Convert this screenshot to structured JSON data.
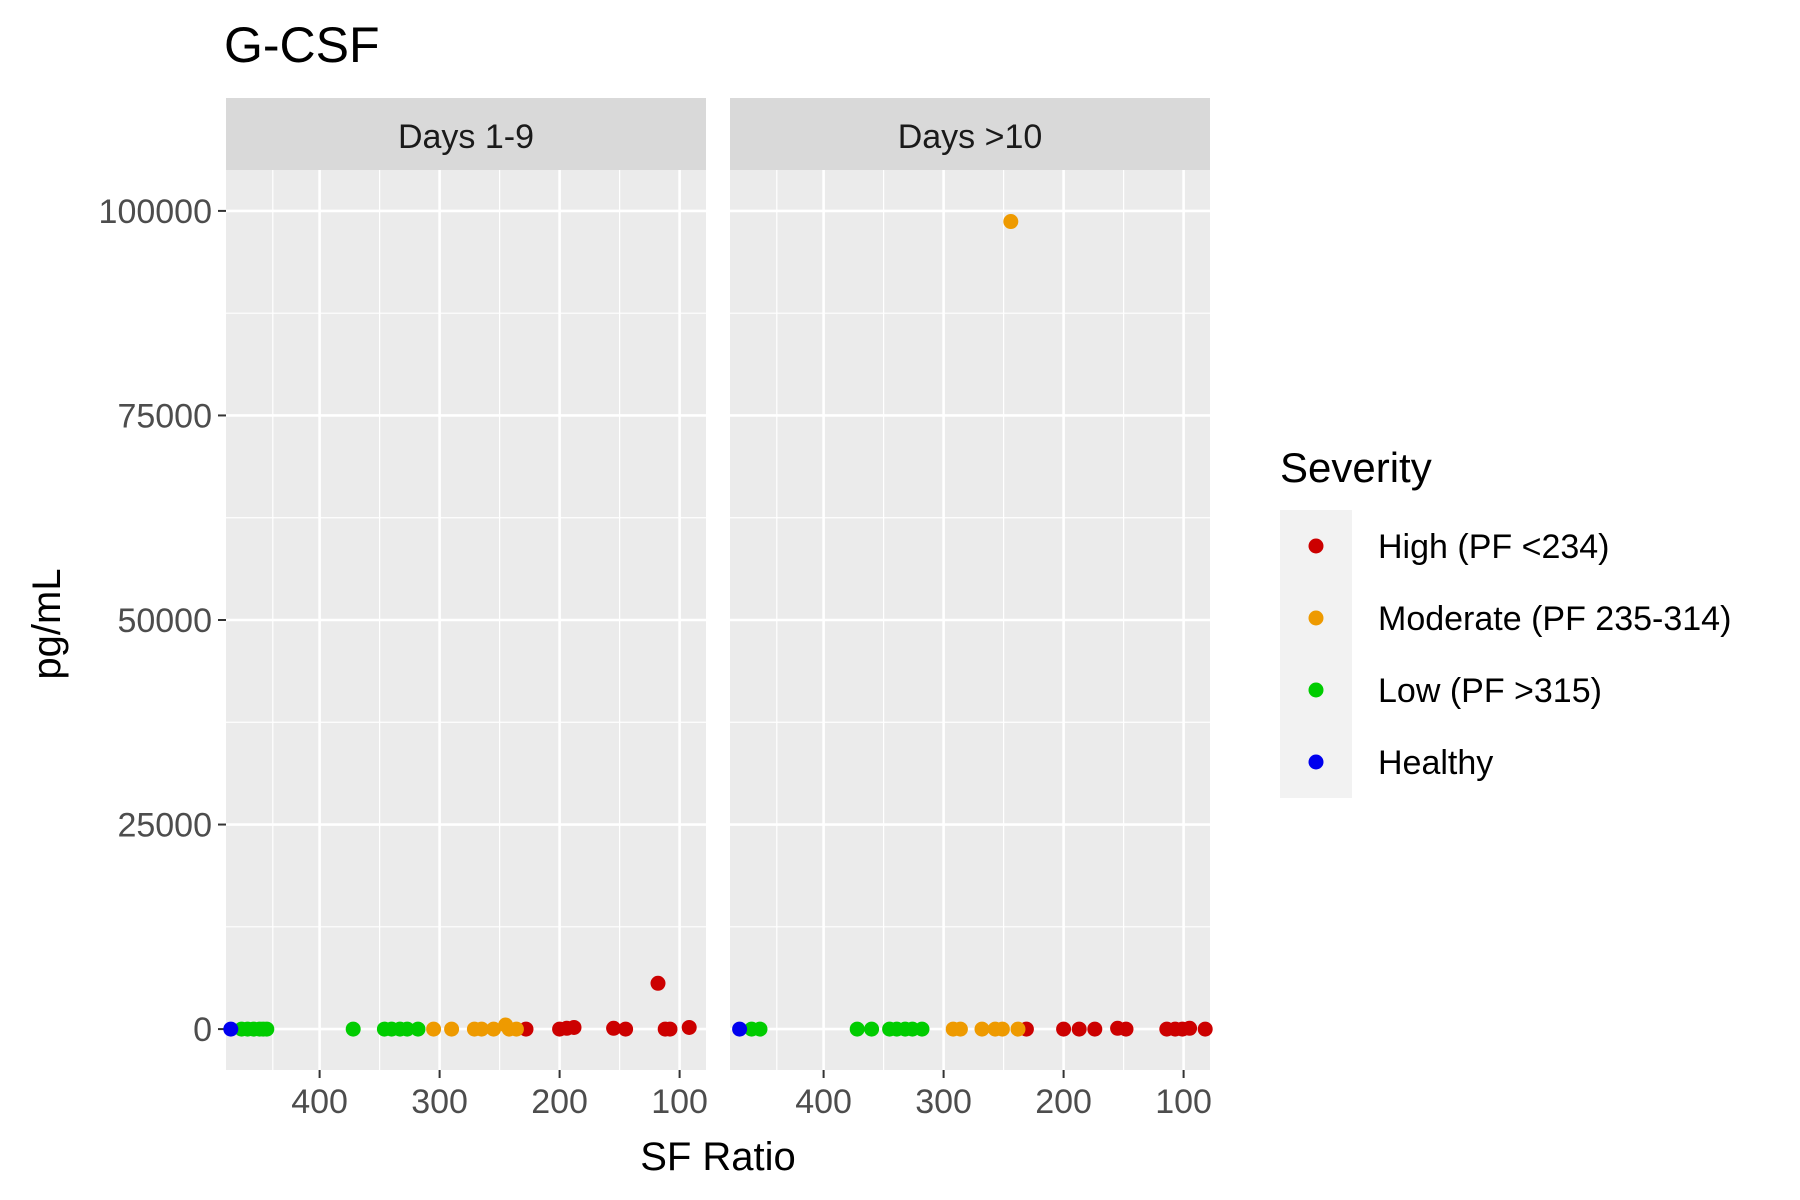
{
  "chart_data": {
    "type": "scatter",
    "title": "G-CSF",
    "xlabel": "SF Ratio",
    "ylabel": "pg/mL",
    "x_reversed": true,
    "x_ticks": [
      400,
      300,
      200,
      100
    ],
    "y_ticks": [
      0,
      25000,
      50000,
      75000,
      100000
    ],
    "xlim": [
      478,
      78
    ],
    "ylim": [
      -5000,
      105000
    ],
    "grid": true,
    "legend_title": "Severity",
    "legend_position": "right",
    "facets": [
      {
        "label": "Days 1-9",
        "series": [
          {
            "name": "High (PF <234)",
            "color": "#cc0000",
            "x": [
              228,
              200,
              194,
              188,
              155,
              145,
              118,
              112,
              108,
              92
            ],
            "y": [
              0,
              0,
              100,
              200,
              100,
              0,
              5600,
              0,
              0,
              200
            ]
          },
          {
            "name": "Moderate (PF 235-314)",
            "color": "#ee9a00",
            "x": [
              305,
              290,
              271,
              265,
              255,
              245,
              242,
              236
            ],
            "y": [
              0,
              0,
              0,
              0,
              0,
              500,
              0,
              0
            ]
          },
          {
            "name": "Low (PF >315)",
            "color": "#00cc00",
            "x": [
              465,
              460,
              455,
              450,
              447,
              444,
              372,
              346,
              340,
              333,
              327,
              318
            ],
            "y": [
              0,
              0,
              0,
              0,
              0,
              0,
              0,
              0,
              0,
              0,
              0,
              0
            ]
          },
          {
            "name": "Healthy",
            "color": "#0000ee",
            "x": [
              474
            ],
            "y": [
              0
            ]
          }
        ]
      },
      {
        "label": "Days >10",
        "series": [
          {
            "name": "High (PF <234)",
            "color": "#cc0000",
            "x": [
              231,
              200,
              187,
              174,
              155,
              148,
              114,
              107,
              101,
              95,
              82
            ],
            "y": [
              0,
              0,
              0,
              0,
              100,
              0,
              0,
              0,
              0,
              100,
              0
            ]
          },
          {
            "name": "Moderate (PF 235-314)",
            "color": "#ee9a00",
            "x": [
              292,
              286,
              268,
              257,
              251,
              244,
              238
            ],
            "y": [
              0,
              0,
              0,
              0,
              0,
              98700,
              0
            ]
          },
          {
            "name": "Low (PF >315)",
            "color": "#00cc00",
            "x": [
              460,
              453,
              372,
              360,
              345,
              339,
              332,
              326,
              318
            ],
            "y": [
              0,
              0,
              0,
              0,
              0,
              0,
              0,
              0,
              0
            ]
          },
          {
            "name": "Healthy",
            "color": "#0000ee",
            "x": [
              470
            ],
            "y": [
              0
            ]
          }
        ]
      }
    ]
  }
}
